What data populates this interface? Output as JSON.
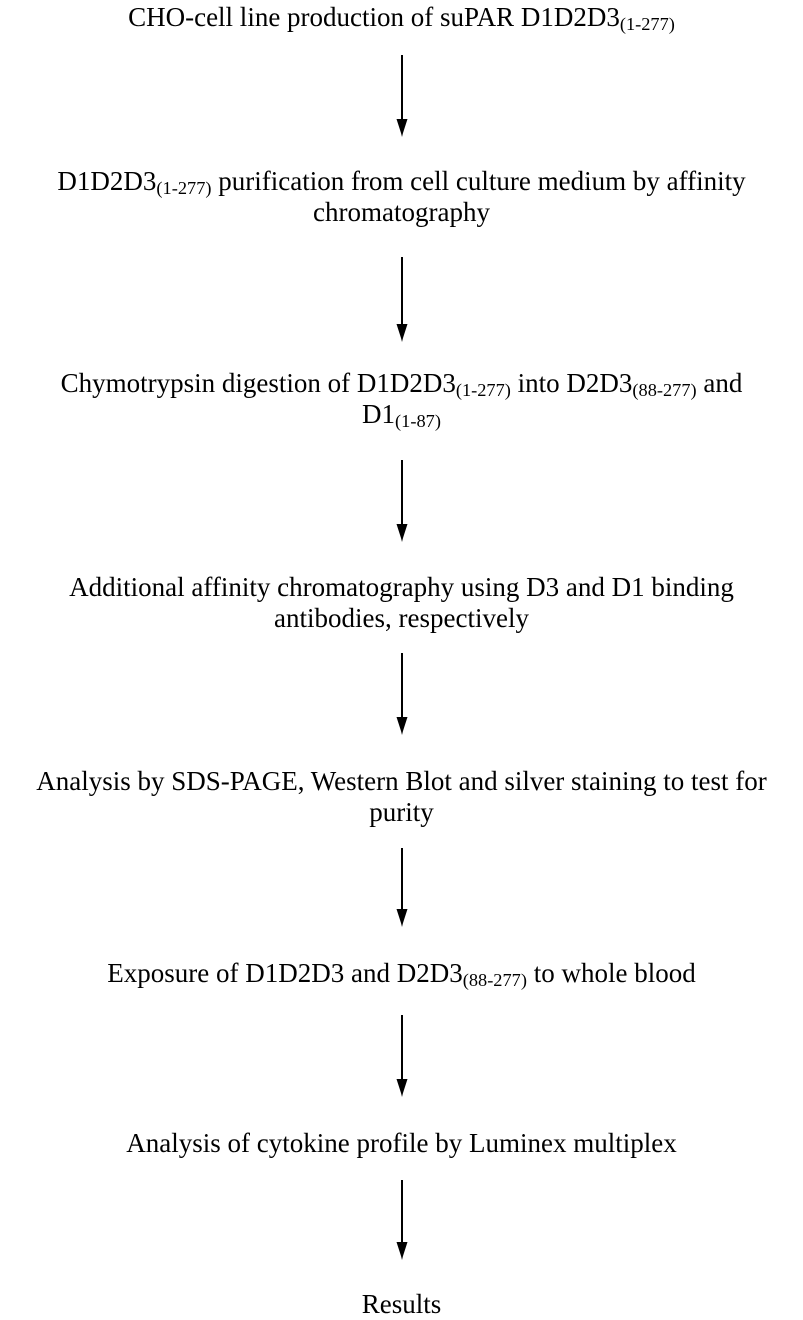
{
  "colors": {
    "ink": "#000000",
    "background": "#ffffff"
  },
  "flowchart": {
    "description": "process-flow-diagram",
    "arrow_glyph": "down-arrow",
    "steps": [
      {
        "lines": [
          [
            {
              "t": "CHO-cell line production of suPAR D1D2D3"
            },
            {
              "t": "(1-277)",
              "sub": true
            }
          ]
        ]
      },
      {
        "lines": [
          [
            {
              "t": "D1D2D3"
            },
            {
              "t": "(1-277)",
              "sub": true
            },
            {
              "t": " purification from cell culture medium by affinity"
            }
          ],
          [
            {
              "t": "chromatography"
            }
          ]
        ]
      },
      {
        "lines": [
          [
            {
              "t": "Chymotrypsin digestion of D1D2D3"
            },
            {
              "t": "(1-277)",
              "sub": true
            },
            {
              "t": " into D2D3"
            },
            {
              "t": "(88-277)",
              "sub": true
            },
            {
              "t": " and"
            }
          ],
          [
            {
              "t": "D1"
            },
            {
              "t": "(1-87)",
              "sub": true
            }
          ]
        ]
      },
      {
        "lines": [
          [
            {
              "t": "Additional affinity chromatography using D3 and D1 binding"
            }
          ],
          [
            {
              "t": "antibodies, respectively"
            }
          ]
        ]
      },
      {
        "lines": [
          [
            {
              "t": "Analysis by SDS-PAGE, Western Blot and silver staining to test for"
            }
          ],
          [
            {
              "t": "purity"
            }
          ]
        ]
      },
      {
        "lines": [
          [
            {
              "t": "Exposure of D1D2D3 and D2D3"
            },
            {
              "t": "(88-277)",
              "sub": true
            },
            {
              "t": " to whole blood"
            }
          ]
        ]
      },
      {
        "lines": [
          [
            {
              "t": "Analysis of cytokine profile by Luminex multiplex"
            }
          ]
        ]
      },
      {
        "lines": [
          [
            {
              "t": "Results"
            }
          ]
        ]
      }
    ]
  }
}
